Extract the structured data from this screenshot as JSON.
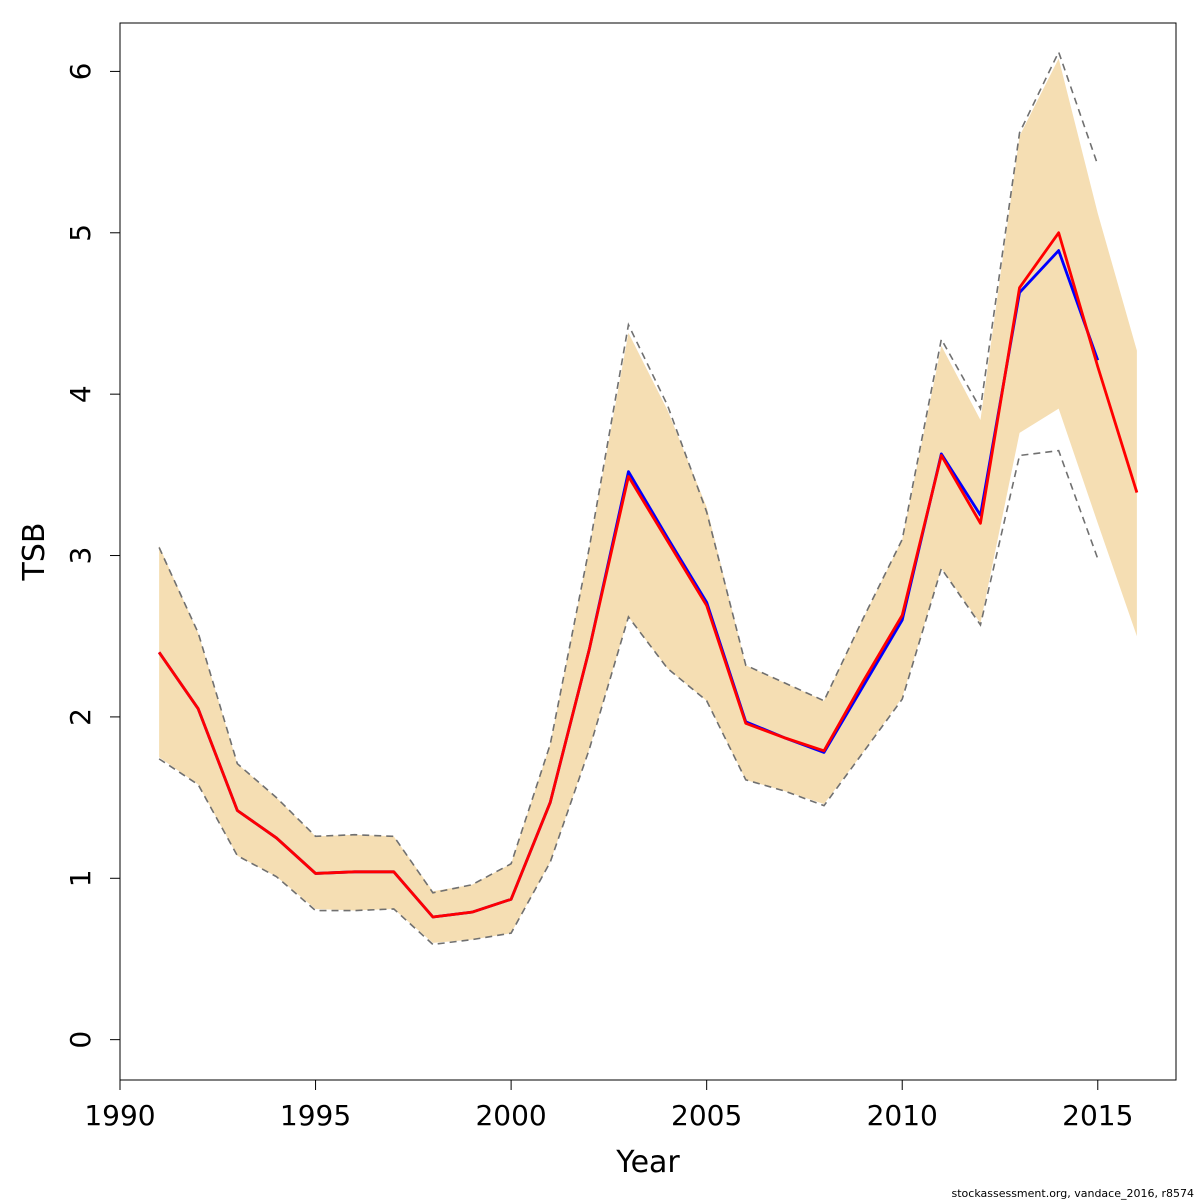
{
  "chart_data": {
    "type": "line",
    "title": "",
    "xlabel": "Year",
    "ylabel": "TSB",
    "xlim": [
      1990,
      2017
    ],
    "ylim": [
      -0.25,
      6.3
    ],
    "x_ticks": [
      1990,
      1995,
      2000,
      2005,
      2010,
      2015
    ],
    "y_ticks": [
      0,
      1,
      2,
      3,
      4,
      5,
      6
    ],
    "grid": false,
    "footer": "stockassessment.org, vandace_2016, r8574",
    "colors": {
      "band": "#F5DEB3",
      "dashed": "#707070",
      "previous": "#0000FF",
      "current": "#FF0000",
      "axis": "#000000"
    },
    "band": {
      "x": [
        1991,
        1992,
        1993,
        1994,
        1995,
        1996,
        1997,
        1998,
        1999,
        2000,
        2001,
        2002,
        2003,
        2004,
        2005,
        2006,
        2007,
        2008,
        2009,
        2010,
        2011,
        2012,
        2013,
        2014,
        2015,
        2016
      ],
      "lower": [
        1.75,
        1.58,
        1.14,
        1.01,
        0.81,
        0.8,
        0.81,
        0.6,
        0.62,
        0.66,
        1.1,
        1.8,
        2.62,
        2.3,
        2.1,
        1.61,
        1.54,
        1.46,
        1.78,
        2.12,
        2.92,
        2.58,
        3.76,
        3.91,
        3.2,
        2.5
      ],
      "upper": [
        3.06,
        2.52,
        1.71,
        1.5,
        1.26,
        1.27,
        1.26,
        0.92,
        0.96,
        1.09,
        1.83,
        3.05,
        4.38,
        3.9,
        3.3,
        2.32,
        2.21,
        2.1,
        2.61,
        3.1,
        4.3,
        3.84,
        5.6,
        6.08,
        5.12,
        4.27
      ]
    },
    "dashed_bounds": {
      "x": [
        1991,
        1992,
        1993,
        1994,
        1995,
        1996,
        1997,
        1998,
        1999,
        2000,
        2001,
        2002,
        2003,
        2004,
        2005,
        2006,
        2007,
        2008,
        2009,
        2010,
        2011,
        2012,
        2013,
        2014,
        2015
      ],
      "lower": [
        1.74,
        1.58,
        1.14,
        1.01,
        0.8,
        0.8,
        0.81,
        0.59,
        0.62,
        0.66,
        1.1,
        1.8,
        2.62,
        2.3,
        2.1,
        1.61,
        1.54,
        1.45,
        1.78,
        2.11,
        2.92,
        2.57,
        3.62,
        3.65,
        2.98
      ],
      "upper": [
        3.05,
        2.52,
        1.71,
        1.5,
        1.26,
        1.27,
        1.26,
        0.91,
        0.96,
        1.09,
        1.83,
        3.05,
        4.43,
        3.93,
        3.27,
        2.32,
        2.21,
        2.1,
        2.61,
        3.1,
        4.34,
        3.91,
        5.62,
        6.12,
        5.42
      ]
    },
    "series": [
      {
        "x": [
          1991,
          1992,
          1993,
          1994,
          1995,
          1996,
          1997,
          1998,
          1999,
          2000,
          2001,
          2002,
          2003,
          2004,
          2005,
          2006,
          2007,
          2008,
          2009,
          2010,
          2011,
          2012,
          2013,
          2014,
          2015
        ],
        "values": [
          2.4,
          2.05,
          1.42,
          1.25,
          1.03,
          1.04,
          1.04,
          0.76,
          0.79,
          0.87,
          1.47,
          2.42,
          3.52,
          3.11,
          2.71,
          1.97,
          1.87,
          1.78,
          2.19,
          2.6,
          3.63,
          3.25,
          4.63,
          4.89,
          4.21
        ]
      },
      {
        "x": [
          1991,
          1992,
          1993,
          1994,
          1995,
          1996,
          1997,
          1998,
          1999,
          2000,
          2001,
          2002,
          2003,
          2004,
          2005,
          2006,
          2007,
          2008,
          2009,
          2010,
          2011,
          2012,
          2013,
          2014,
          2015,
          2016
        ],
        "values": [
          2.4,
          2.05,
          1.42,
          1.25,
          1.03,
          1.04,
          1.04,
          0.76,
          0.79,
          0.87,
          1.47,
          2.42,
          3.49,
          3.09,
          2.69,
          1.96,
          1.87,
          1.79,
          2.22,
          2.63,
          3.62,
          3.2,
          4.66,
          5.0,
          4.17,
          3.39
        ]
      }
    ]
  }
}
